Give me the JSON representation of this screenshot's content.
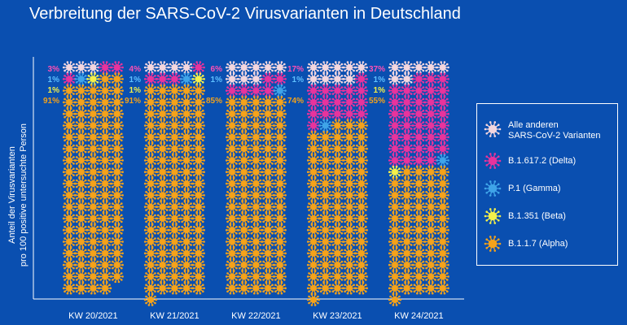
{
  "title": "Verbreitung der SARS-CoV-2 Virusvarianten in Deutschland",
  "y_axis_label": {
    "line1": "Anteil der Virusvarianten",
    "line2": "pro 100 positive untersuchte Person"
  },
  "chart_data": {
    "type": "waffle",
    "title": "Verbreitung der SARS-CoV-2 Virusvarianten in Deutschland",
    "ylabel": "Anteil der Virusvarianten pro 100 positive untersuchte Person",
    "categories": [
      "KW 20/2021",
      "KW 21/2021",
      "KW 22/2021",
      "KW 23/2021",
      "KW 24/2021"
    ],
    "series": [
      {
        "name": "Alle anderen SARS-CoV-2 Varianten",
        "values": [
          3,
          4,
          8,
          9,
          7
        ]
      },
      {
        "name": "B.1.617.2 (Delta)",
        "values": [
          3,
          4,
          6,
          17,
          37
        ]
      },
      {
        "name": "P.1 (Gamma)",
        "values": [
          1,
          1,
          1,
          1,
          1
        ]
      },
      {
        "name": "B.1.351 (Beta)",
        "values": [
          1,
          1,
          0,
          0,
          1
        ]
      },
      {
        "name": "B.1.1.7 (Alpha)",
        "values": [
          91,
          91,
          85,
          74,
          55
        ]
      }
    ],
    "labels": [
      {
        "delta": "3%",
        "gamma": "1%",
        "beta": "1%",
        "alpha": "91%"
      },
      {
        "delta": "4%",
        "gamma": "1%",
        "beta": "1%",
        "alpha": "91%"
      },
      {
        "delta": "6%",
        "gamma": "1%",
        "beta": "",
        "alpha": "85%"
      },
      {
        "delta": "17%",
        "gamma": "1%",
        "beta": "",
        "alpha": "74%"
      },
      {
        "delta": "37%",
        "gamma": "1%",
        "beta": "1%",
        "alpha": "55%"
      }
    ],
    "grid": "5 columns x 20 rows per week",
    "legend_position": "right"
  },
  "legend": [
    {
      "key": "others",
      "line1": "Alle anderen",
      "line2": "SARS-CoV-2 Varianten",
      "color": "#f3d6de"
    },
    {
      "key": "delta",
      "line1": "B.1.617.2 (Delta)",
      "line2": "",
      "color": "#e8339c"
    },
    {
      "key": "gamma",
      "line1": "P.1 (Gamma)",
      "line2": "",
      "color": "#3fa4e8"
    },
    {
      "key": "beta",
      "line1": "B.1.351 (Beta)",
      "line2": "",
      "color": "#f4f04a"
    },
    {
      "key": "alpha",
      "line1": "B.1.1.7 (Alpha)",
      "line2": "",
      "color": "#f4a21a"
    }
  ],
  "label_colors": {
    "delta": "#ff4fb5",
    "gamma": "#5fc0ff",
    "beta": "#f4f04a",
    "alpha": "#f4a21a"
  }
}
